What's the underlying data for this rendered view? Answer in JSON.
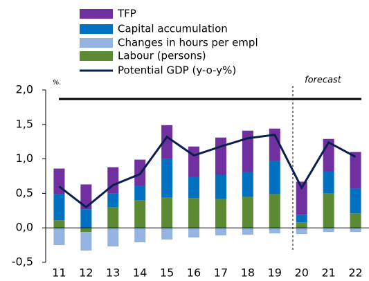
{
  "chart_data": {
    "type": "bar",
    "stacked": true,
    "categories": [
      "11",
      "12",
      "13",
      "14",
      "15",
      "16",
      "17",
      "18",
      "19",
      "20",
      "21",
      "22"
    ],
    "series": [
      {
        "name": "TFP",
        "color": "#7030a0",
        "values": [
          0.37,
          0.36,
          0.38,
          0.38,
          0.49,
          0.44,
          0.54,
          0.6,
          0.47,
          0.48,
          0.47,
          0.53
        ]
      },
      {
        "name": "Capital accumulation",
        "color": "#0070c0",
        "values": [
          0.38,
          0.27,
          0.2,
          0.21,
          0.56,
          0.31,
          0.35,
          0.36,
          0.48,
          0.11,
          0.32,
          0.36
        ]
      },
      {
        "name": "Changes in hours per empl",
        "color": "#95b3e0",
        "values": [
          -0.25,
          -0.27,
          -0.27,
          -0.21,
          -0.17,
          -0.14,
          -0.11,
          -0.1,
          -0.08,
          -0.09,
          -0.06,
          -0.06
        ]
      },
      {
        "name": "Labour (persons)",
        "color": "#5b8a32",
        "values": [
          0.11,
          -0.06,
          0.3,
          0.4,
          0.44,
          0.43,
          0.42,
          0.45,
          0.49,
          0.08,
          0.5,
          0.21
        ]
      },
      {
        "name": "Potential GDP (y-o-y%)",
        "type": "line",
        "color": "#0a1f4f",
        "values": [
          0.6,
          0.3,
          0.62,
          0.78,
          1.32,
          1.05,
          1.18,
          1.3,
          1.35,
          0.58,
          1.24,
          1.03
        ]
      }
    ],
    "reference_line": {
      "value": 1.87,
      "color": "#000000"
    },
    "unit_note": "%.",
    "annotation": "forecast",
    "ylim": [
      -0.5,
      2.0
    ],
    "yticks": [
      {
        "value": -0.5,
        "label": "-0,5"
      },
      {
        "value": 0,
        "label": "0,0"
      },
      {
        "value": 0.5,
        "label": "0,5"
      },
      {
        "value": 1.0,
        "label": "1,0"
      },
      {
        "value": 1.5,
        "label": "1,5"
      },
      {
        "value": 2.0,
        "label": "2,0"
      }
    ],
    "legend": "top-left"
  }
}
